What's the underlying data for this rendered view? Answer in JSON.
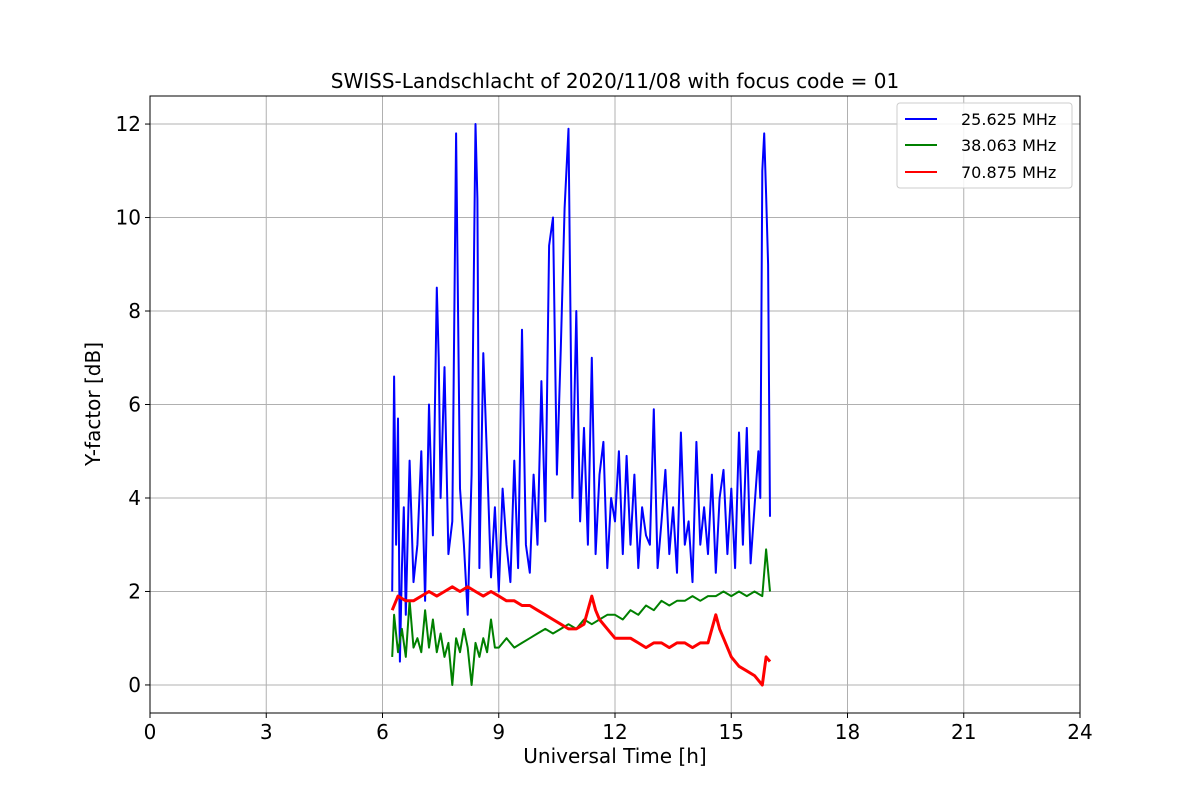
{
  "chart_data": {
    "type": "line",
    "title": "SWISS-Landschlacht of 2020/11/08 with focus code = 01",
    "xlabel": "Universal Time [h]",
    "ylabel": "Y-factor [dB]",
    "xlim": [
      0,
      24
    ],
    "ylim": [
      -0.6,
      12.6
    ],
    "xticks": [
      0,
      3,
      6,
      9,
      12,
      15,
      18,
      21,
      24
    ],
    "yticks": [
      0,
      2,
      4,
      6,
      8,
      10,
      12
    ],
    "grid": true,
    "legend_position": "top-right",
    "series": [
      {
        "name": "25.625 MHz",
        "color": "#0000ff",
        "x": [
          6.25,
          6.3,
          6.35,
          6.4,
          6.45,
          6.5,
          6.55,
          6.6,
          6.7,
          6.8,
          6.9,
          7.0,
          7.1,
          7.2,
          7.3,
          7.4,
          7.45,
          7.5,
          7.6,
          7.7,
          7.8,
          7.9,
          8.0,
          8.1,
          8.2,
          8.3,
          8.4,
          8.45,
          8.5,
          8.6,
          8.7,
          8.8,
          8.9,
          9.0,
          9.1,
          9.2,
          9.3,
          9.4,
          9.5,
          9.6,
          9.7,
          9.8,
          9.9,
          10.0,
          10.1,
          10.2,
          10.3,
          10.4,
          10.5,
          10.6,
          10.7,
          10.8,
          10.9,
          11.0,
          11.1,
          11.2,
          11.3,
          11.4,
          11.5,
          11.6,
          11.7,
          11.8,
          11.9,
          12.0,
          12.1,
          12.2,
          12.3,
          12.4,
          12.5,
          12.6,
          12.7,
          12.8,
          12.9,
          13.0,
          13.1,
          13.2,
          13.3,
          13.4,
          13.5,
          13.6,
          13.7,
          13.8,
          13.9,
          14.0,
          14.1,
          14.2,
          14.3,
          14.4,
          14.5,
          14.6,
          14.7,
          14.8,
          14.9,
          15.0,
          15.1,
          15.2,
          15.3,
          15.4,
          15.5,
          15.6,
          15.7,
          15.75,
          15.8,
          15.85,
          15.9,
          15.95,
          16.0
        ],
        "y": [
          2.0,
          6.6,
          3.0,
          5.7,
          0.5,
          2.5,
          3.8,
          1.5,
          4.8,
          2.2,
          3.0,
          5.0,
          1.8,
          6.0,
          3.2,
          8.5,
          7.0,
          4.0,
          6.8,
          2.8,
          3.5,
          11.8,
          4.2,
          3.0,
          1.5,
          4.5,
          12.0,
          10.4,
          2.5,
          7.1,
          4.8,
          2.3,
          3.8,
          2.0,
          4.2,
          3.0,
          2.2,
          4.8,
          2.5,
          7.6,
          3.0,
          2.4,
          4.5,
          3.0,
          6.5,
          3.5,
          9.4,
          10.0,
          4.5,
          7.2,
          10.2,
          11.9,
          4.0,
          8.0,
          3.5,
          5.5,
          3.0,
          7.0,
          2.8,
          4.5,
          5.2,
          2.5,
          4.0,
          3.5,
          5.0,
          2.8,
          4.9,
          3.0,
          4.5,
          2.5,
          3.8,
          3.2,
          3.0,
          5.9,
          2.5,
          3.5,
          4.6,
          2.8,
          3.8,
          2.4,
          5.4,
          3.0,
          3.5,
          2.2,
          5.2,
          3.0,
          3.8,
          2.8,
          4.5,
          2.4,
          4.0,
          4.6,
          2.8,
          4.2,
          2.5,
          5.4,
          3.0,
          5.5,
          2.6,
          3.8,
          5.0,
          4.0,
          11.0,
          11.8,
          10.5,
          9.0,
          3.6
        ]
      },
      {
        "name": "38.063 MHz",
        "color": "#008000",
        "x": [
          6.25,
          6.3,
          6.4,
          6.5,
          6.6,
          6.7,
          6.8,
          6.9,
          7.0,
          7.1,
          7.2,
          7.3,
          7.4,
          7.5,
          7.6,
          7.7,
          7.8,
          7.9,
          8.0,
          8.1,
          8.2,
          8.3,
          8.4,
          8.5,
          8.6,
          8.7,
          8.8,
          8.9,
          9.0,
          9.2,
          9.4,
          9.6,
          9.8,
          10.0,
          10.2,
          10.4,
          10.6,
          10.8,
          11.0,
          11.2,
          11.4,
          11.6,
          11.8,
          12.0,
          12.2,
          12.4,
          12.6,
          12.8,
          13.0,
          13.2,
          13.4,
          13.6,
          13.8,
          14.0,
          14.2,
          14.4,
          14.6,
          14.8,
          15.0,
          15.2,
          15.4,
          15.6,
          15.8,
          15.9,
          16.0
        ],
        "y": [
          0.6,
          1.5,
          0.7,
          1.2,
          0.6,
          1.8,
          0.8,
          1.0,
          0.7,
          1.6,
          0.8,
          1.4,
          0.7,
          1.1,
          0.6,
          0.9,
          0.0,
          1.0,
          0.7,
          1.2,
          0.8,
          0.0,
          0.9,
          0.6,
          1.0,
          0.7,
          1.4,
          0.8,
          0.8,
          1.0,
          0.8,
          0.9,
          1.0,
          1.1,
          1.2,
          1.1,
          1.2,
          1.3,
          1.2,
          1.4,
          1.3,
          1.4,
          1.5,
          1.5,
          1.4,
          1.6,
          1.5,
          1.7,
          1.6,
          1.8,
          1.7,
          1.8,
          1.8,
          1.9,
          1.8,
          1.9,
          1.9,
          2.0,
          1.9,
          2.0,
          1.9,
          2.0,
          1.9,
          2.9,
          2.0
        ]
      },
      {
        "name": "70.875 MHz",
        "color": "#ff0000",
        "x": [
          6.25,
          6.4,
          6.6,
          6.8,
          7.0,
          7.2,
          7.4,
          7.6,
          7.8,
          8.0,
          8.2,
          8.4,
          8.6,
          8.8,
          9.0,
          9.2,
          9.4,
          9.6,
          9.8,
          10.0,
          10.2,
          10.4,
          10.6,
          10.8,
          11.0,
          11.2,
          11.4,
          11.5,
          11.6,
          11.8,
          12.0,
          12.2,
          12.4,
          12.6,
          12.8,
          13.0,
          13.2,
          13.4,
          13.6,
          13.8,
          14.0,
          14.2,
          14.4,
          14.6,
          14.7,
          14.8,
          15.0,
          15.2,
          15.4,
          15.6,
          15.7,
          15.8,
          15.9,
          16.0
        ],
        "y": [
          1.6,
          1.9,
          1.8,
          1.8,
          1.9,
          2.0,
          1.9,
          2.0,
          2.1,
          2.0,
          2.1,
          2.0,
          1.9,
          2.0,
          1.9,
          1.8,
          1.8,
          1.7,
          1.7,
          1.6,
          1.5,
          1.4,
          1.3,
          1.2,
          1.2,
          1.3,
          1.9,
          1.6,
          1.4,
          1.2,
          1.0,
          1.0,
          1.0,
          0.9,
          0.8,
          0.9,
          0.9,
          0.8,
          0.9,
          0.9,
          0.8,
          0.9,
          0.9,
          1.5,
          1.2,
          1.0,
          0.6,
          0.4,
          0.3,
          0.2,
          0.1,
          0.0,
          0.6,
          0.5
        ]
      }
    ]
  }
}
